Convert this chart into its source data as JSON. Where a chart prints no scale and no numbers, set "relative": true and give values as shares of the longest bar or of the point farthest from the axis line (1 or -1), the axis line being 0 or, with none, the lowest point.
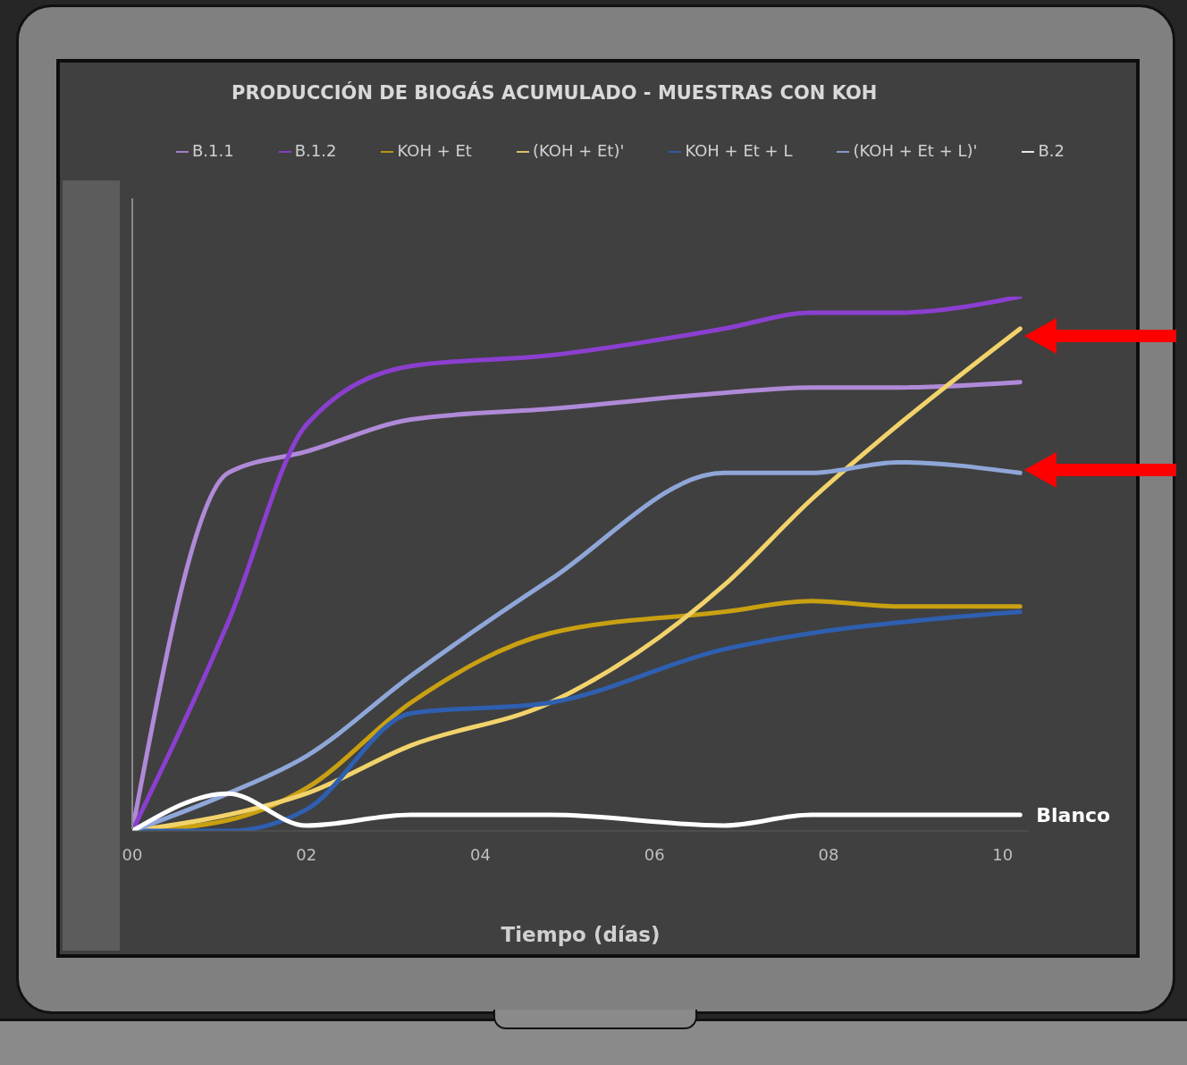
{
  "chart_data": {
    "type": "line",
    "title": "PRODUCCIÓN DE BIOGÁS ACUMULADO - MUESTRAS CON KOH",
    "xlabel": "Tiempo (días)",
    "relative": true,
    "legend": "top",
    "line_style": "solid",
    "x": [
      0,
      1.1,
      2,
      3.2,
      4.8,
      6.8,
      7.8,
      8.8,
      10.2
    ],
    "xlim": [
      0,
      10.3
    ],
    "xticks": [
      {
        "value": 0,
        "label": "00"
      },
      {
        "value": 2,
        "label": "02"
      },
      {
        "value": 4,
        "label": "04"
      },
      {
        "value": 6,
        "label": "06"
      },
      {
        "value": 8,
        "label": "08"
      },
      {
        "value": 10,
        "label": "10"
      }
    ],
    "series": [
      {
        "name": "B.1.1",
        "color": "#b08ad8",
        "values": [
          0,
          0.67,
          0.71,
          0.77,
          0.79,
          0.82,
          0.83,
          0.83,
          0.84
        ]
      },
      {
        "name": "B.1.2",
        "color": "#8b3fd0",
        "values": [
          0,
          0.39,
          0.76,
          0.87,
          0.89,
          0.94,
          0.97,
          0.97,
          1
        ]
      },
      {
        "name": "KOH + Et",
        "color": "#c9a012",
        "values": [
          0,
          0.02,
          0.08,
          0.24,
          0.37,
          0.41,
          0.43,
          0.42,
          0.42
        ]
      },
      {
        "name": "(KOH + Et)'",
        "color": "#f2d36b",
        "values": [
          0,
          0.03,
          0.07,
          0.16,
          0.24,
          0.46,
          0.62,
          0.76,
          0.94
        ]
      },
      {
        "name": "KOH + Et + L",
        "color": "#2e5fb0",
        "values": [
          0,
          0,
          0.04,
          0.22,
          0.24,
          0.34,
          0.37,
          0.39,
          0.41
        ]
      },
      {
        "name": "(KOH + Et + L)'",
        "color": "#8fa6d8",
        "values": [
          0,
          0.07,
          0.14,
          0.29,
          0.47,
          0.67,
          0.67,
          0.69,
          0.67
        ]
      },
      {
        "name": "B.2",
        "color": "#ffffff",
        "values": [
          0,
          0.07,
          0.01,
          0.03,
          0.03,
          0.01,
          0.03,
          0.03,
          0.03
        ]
      }
    ],
    "annotations": [
      {
        "text": "Blanco",
        "x": 10.2,
        "y": 0.03
      }
    ]
  }
}
